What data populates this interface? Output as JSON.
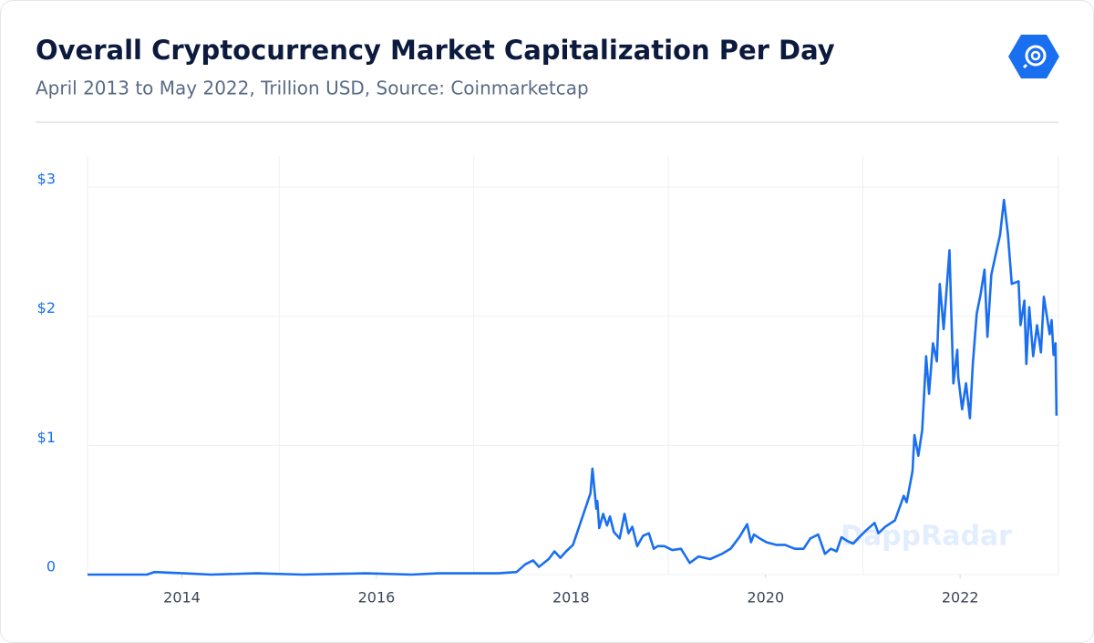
{
  "chart_data": {
    "type": "line",
    "title": "Overall Cryptocurrency Market Capitalization Per Day",
    "subtitle": "April 2013 to May 2022, Trillion USD, Source: Coinmarketcap",
    "watermark": "DappRadar",
    "x": [
      2013.03,
      2013.64,
      2013.72,
      2014.02,
      2014.3,
      2014.77,
      2015.24,
      2015.89,
      2016.36,
      2016.64,
      2017.02,
      2017.25,
      2017.44,
      2017.53,
      2017.61,
      2017.67,
      2017.77,
      2017.83,
      2017.89,
      2017.95,
      2018.02,
      2018.11,
      2018.2,
      2018.22,
      2018.26,
      2018.27,
      2018.29,
      2018.33,
      2018.37,
      2018.4,
      2018.44,
      2018.5,
      2018.55,
      2018.59,
      2018.63,
      2018.68,
      2018.74,
      2018.8,
      2018.85,
      2018.89,
      2018.96,
      2019.04,
      2019.13,
      2019.22,
      2019.31,
      2019.43,
      2019.55,
      2019.64,
      2019.73,
      2019.81,
      2019.85,
      2019.88,
      2019.94,
      2020.01,
      2020.11,
      2020.2,
      2020.3,
      2020.39,
      2020.46,
      2020.54,
      2020.61,
      2020.67,
      2020.73,
      2020.78,
      2020.84,
      2020.9,
      2020.95,
      2021.03,
      2021.12,
      2021.16,
      2021.23,
      2021.33,
      2021.42,
      2021.45,
      2021.51,
      2021.53,
      2021.57,
      2021.61,
      2021.65,
      2021.68,
      2021.72,
      2021.76,
      2021.79,
      2021.83,
      2021.89,
      2021.93,
      2021.97,
      2021.98,
      2022.02,
      2022.06,
      2022.1,
      2022.13,
      2022.17,
      2022.21,
      2022.25,
      2022.28,
      2022.32,
      2022.36,
      2022.41,
      2022.45,
      2022.49,
      2022.53,
      2022.6,
      2022.62,
      2022.66,
      2022.68,
      2022.71,
      2022.75,
      2022.79,
      2022.83,
      2022.86,
      2022.92,
      2022.94,
      2022.96,
      2022.98,
      2022.99
    ],
    "series": [
      {
        "name": "Market Cap",
        "color": "#1a6ff0",
        "values": [
          0,
          0,
          0.02,
          0.01,
          0,
          0.01,
          0,
          0.01,
          0,
          0.01,
          0.01,
          0.01,
          0.02,
          0.08,
          0.11,
          0.06,
          0.12,
          0.18,
          0.13,
          0.18,
          0.23,
          0.43,
          0.63,
          0.82,
          0.51,
          0.57,
          0.36,
          0.47,
          0.38,
          0.45,
          0.33,
          0.28,
          0.47,
          0.32,
          0.37,
          0.22,
          0.3,
          0.32,
          0.2,
          0.22,
          0.22,
          0.19,
          0.2,
          0.09,
          0.14,
          0.12,
          0.16,
          0.2,
          0.29,
          0.39,
          0.25,
          0.31,
          0.28,
          0.25,
          0.23,
          0.23,
          0.2,
          0.2,
          0.28,
          0.31,
          0.16,
          0.2,
          0.18,
          0.29,
          0.26,
          0.24,
          0.28,
          0.34,
          0.4,
          0.32,
          0.37,
          0.42,
          0.61,
          0.56,
          0.8,
          1.08,
          0.92,
          1.12,
          1.69,
          1.4,
          1.79,
          1.65,
          2.25,
          1.9,
          2.51,
          1.48,
          1.74,
          1.53,
          1.28,
          1.48,
          1.21,
          1.63,
          2.02,
          2.17,
          2.36,
          1.84,
          2.32,
          2.46,
          2.63,
          2.9,
          2.64,
          2.25,
          2.27,
          1.93,
          2.12,
          1.63,
          2.07,
          1.69,
          1.93,
          1.72,
          2.15,
          1.86,
          1.97,
          1.7,
          1.79,
          1.23
        ]
      }
    ],
    "xlim": [
      2013.03,
      2023.01
    ],
    "xticks": [
      2014,
      2016,
      2018,
      2020,
      2022
    ],
    "ylim": [
      0,
      3.24
    ],
    "yticks": [
      0,
      {
        "value": 1,
        "label": "$1"
      },
      {
        "value": 2,
        "label": "$2"
      },
      {
        "value": 3,
        "label": "$3"
      }
    ],
    "grid": true
  }
}
